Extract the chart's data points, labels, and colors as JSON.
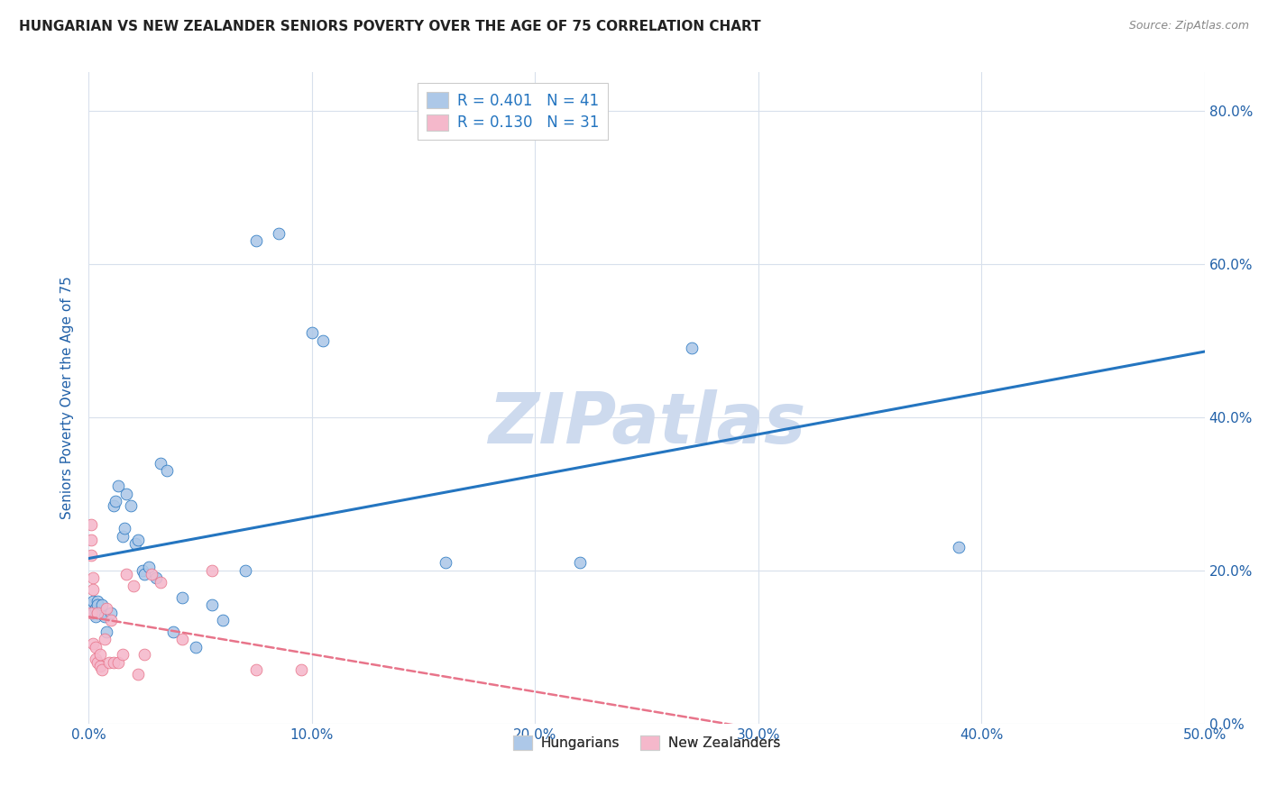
{
  "title": "HUNGARIAN VS NEW ZEALANDER SENIORS POVERTY OVER THE AGE OF 75 CORRELATION CHART",
  "source": "Source: ZipAtlas.com",
  "ylabel": "Seniors Poverty Over the Age of 75",
  "xlim": [
    0.0,
    0.5
  ],
  "ylim": [
    0.0,
    0.85
  ],
  "yticks": [
    0.0,
    0.2,
    0.4,
    0.6,
    0.8
  ],
  "xticks": [
    0.0,
    0.1,
    0.2,
    0.3,
    0.4,
    0.5
  ],
  "hungarian_x": [
    0.001,
    0.002,
    0.002,
    0.003,
    0.003,
    0.004,
    0.004,
    0.005,
    0.006,
    0.007,
    0.008,
    0.01,
    0.011,
    0.012,
    0.013,
    0.015,
    0.016,
    0.017,
    0.019,
    0.021,
    0.022,
    0.024,
    0.025,
    0.027,
    0.03,
    0.032,
    0.035,
    0.038,
    0.042,
    0.048,
    0.055,
    0.06,
    0.07,
    0.075,
    0.085,
    0.1,
    0.105,
    0.16,
    0.22,
    0.27,
    0.39
  ],
  "hungarian_y": [
    0.155,
    0.145,
    0.16,
    0.15,
    0.14,
    0.16,
    0.155,
    0.145,
    0.155,
    0.14,
    0.12,
    0.145,
    0.285,
    0.29,
    0.31,
    0.245,
    0.255,
    0.3,
    0.285,
    0.235,
    0.24,
    0.2,
    0.195,
    0.205,
    0.19,
    0.34,
    0.33,
    0.12,
    0.165,
    0.1,
    0.155,
    0.135,
    0.2,
    0.63,
    0.64,
    0.51,
    0.5,
    0.21,
    0.21,
    0.49,
    0.23
  ],
  "nz_x": [
    0.001,
    0.001,
    0.001,
    0.001,
    0.002,
    0.002,
    0.002,
    0.003,
    0.003,
    0.004,
    0.004,
    0.005,
    0.005,
    0.006,
    0.007,
    0.008,
    0.009,
    0.01,
    0.011,
    0.013,
    0.015,
    0.017,
    0.02,
    0.022,
    0.025,
    0.028,
    0.032,
    0.042,
    0.055,
    0.075,
    0.095
  ],
  "nz_y": [
    0.145,
    0.24,
    0.22,
    0.26,
    0.19,
    0.175,
    0.105,
    0.085,
    0.1,
    0.08,
    0.145,
    0.075,
    0.09,
    0.07,
    0.11,
    0.15,
    0.08,
    0.135,
    0.08,
    0.08,
    0.09,
    0.195,
    0.18,
    0.065,
    0.09,
    0.195,
    0.185,
    0.11,
    0.2,
    0.07,
    0.07
  ],
  "hungarian_R": 0.401,
  "hungarian_N": 41,
  "nz_R": 0.13,
  "nz_N": 31,
  "hungarian_color": "#adc8e8",
  "nz_color": "#f5b8cb",
  "hungarian_line_color": "#2475c0",
  "nz_line_color": "#e8748a",
  "background_color": "#ffffff",
  "grid_color": "#d8e0ec",
  "title_color": "#222222",
  "axis_label_color": "#2060a8",
  "tick_color": "#2060a8",
  "watermark": "ZIPatlas",
  "watermark_color": "#cddaee"
}
